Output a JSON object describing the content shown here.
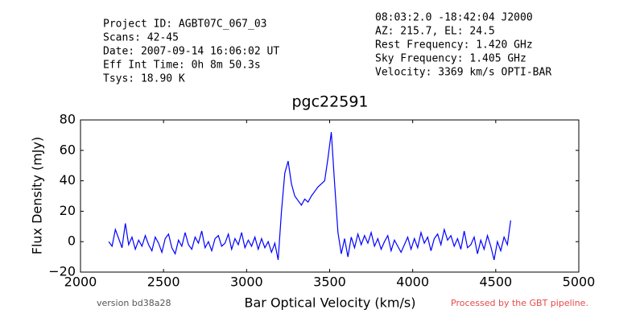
{
  "chart_data": {
    "type": "line",
    "title": "pgc22591",
    "info_left": [
      "Project ID: AGBT07C_067_03",
      "Scans: 42-45",
      "Date: 2007-09-14 16:06:02 UT",
      "Eff Int Time: 0h 8m 50.3s",
      "Tsys: 18.90 K"
    ],
    "info_right": [
      "08:03:2.0 -18:42:04 J2000",
      "AZ: 215.7, EL: 24.5",
      "Rest Frequency:   1.420 GHz",
      "Sky Frequency:    1.405 GHz",
      "Velocity: 3369 km/s OPTI-BAR"
    ],
    "x_label": "Bar Optical Velocity (km/s)",
    "y_label": "Flux Density (mJy)",
    "version": "version bd38a28",
    "credit": "Processed by the GBT pipeline.",
    "xlim": [
      2000,
      5000
    ],
    "xticks": [
      2000,
      2500,
      3000,
      3500,
      4000,
      4500,
      5000
    ],
    "ylim": [
      -20,
      80
    ],
    "yticks": [
      {
        "value": -20,
        "label": "−20"
      },
      0,
      20,
      40,
      60,
      80
    ],
    "grid": false,
    "color": "#0000ff",
    "x": [
      2170,
      2190,
      2210,
      2230,
      2250,
      2270,
      2290,
      2310,
      2330,
      2350,
      2370,
      2390,
      2410,
      2430,
      2450,
      2470,
      2490,
      2510,
      2530,
      2550,
      2570,
      2590,
      2610,
      2630,
      2650,
      2670,
      2690,
      2710,
      2730,
      2750,
      2770,
      2790,
      2810,
      2830,
      2850,
      2870,
      2890,
      2910,
      2930,
      2950,
      2970,
      2990,
      3010,
      3030,
      3050,
      3070,
      3090,
      3110,
      3130,
      3150,
      3170,
      3190,
      3210,
      3230,
      3250,
      3270,
      3290,
      3310,
      3330,
      3350,
      3370,
      3390,
      3410,
      3430,
      3450,
      3470,
      3490,
      3510,
      3530,
      3550,
      3570,
      3590,
      3610,
      3630,
      3650,
      3670,
      3690,
      3710,
      3730,
      3750,
      3770,
      3790,
      3810,
      3830,
      3850,
      3870,
      3890,
      3910,
      3930,
      3950,
      3970,
      3990,
      4010,
      4030,
      4050,
      4070,
      4090,
      4110,
      4130,
      4150,
      4170,
      4190,
      4210,
      4230,
      4250,
      4270,
      4290,
      4310,
      4330,
      4350,
      4370,
      4390,
      4410,
      4430,
      4450,
      4470,
      4490,
      4510,
      4530,
      4550,
      4570,
      4590
    ],
    "values": [
      0,
      -3,
      8,
      2,
      -4,
      12,
      -2,
      3,
      -5,
      1,
      -3,
      4,
      -2,
      -6,
      3,
      -1,
      -7,
      2,
      5,
      -4,
      -8,
      1,
      -3,
      6,
      -2,
      -5,
      3,
      -1,
      7,
      -4,
      0,
      -6,
      2,
      4,
      -3,
      -1,
      5,
      -5,
      2,
      -2,
      6,
      -4,
      1,
      -3,
      3,
      -5,
      2,
      -4,
      0,
      -7,
      -1,
      -12,
      20,
      45,
      53,
      38,
      30,
      27,
      24,
      28,
      26,
      30,
      33,
      36,
      38,
      40,
      55,
      72,
      38,
      6,
      -8,
      2,
      -10,
      3,
      -4,
      5,
      -2,
      4,
      -1,
      6,
      -3,
      2,
      -5,
      0,
      4,
      -6,
      1,
      -3,
      -7,
      -2,
      3,
      -5,
      2,
      -4,
      6,
      -1,
      3,
      -6,
      2,
      5,
      -2,
      8,
      1,
      4,
      -3,
      2,
      -5,
      7,
      -4,
      -2,
      3,
      -8,
      1,
      -5,
      4,
      -3,
      -12,
      0,
      -6,
      3,
      -2,
      14
    ]
  }
}
